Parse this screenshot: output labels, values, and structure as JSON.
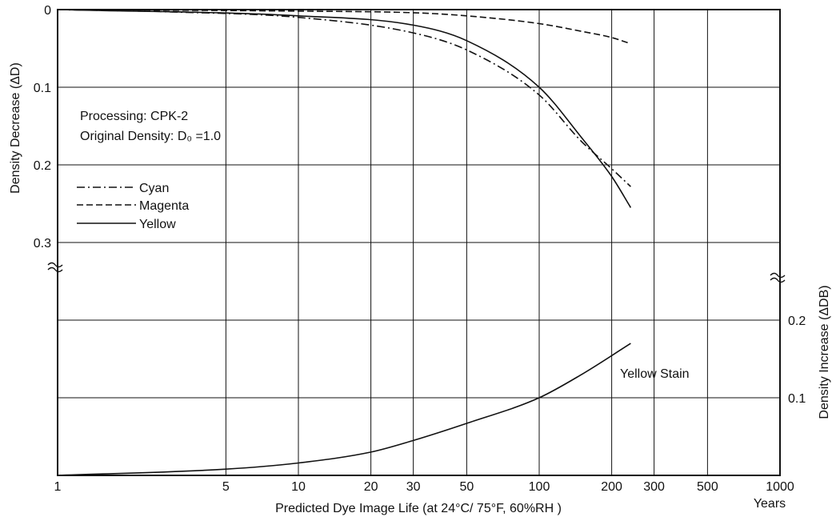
{
  "chart_data": {
    "type": "line",
    "x_scale": "log",
    "xlabel": "Predicted Dye Image Life (at 24°C/ 75°F, 60%RH )",
    "x_unit": "Years",
    "x_ticks": [
      1,
      5,
      10,
      20,
      30,
      50,
      100,
      200,
      300,
      500,
      1000
    ],
    "xlim": [
      1,
      1000
    ],
    "left_axis": {
      "label": "Density Decrease (ΔD)",
      "ticks": [
        "0",
        "0.1",
        "0.2",
        "0.3"
      ],
      "ylim": [
        0,
        0.3
      ],
      "inverted": true
    },
    "right_axis": {
      "label": "Density Increase (ΔDB)",
      "ticks": [
        "0.1",
        "0.2"
      ],
      "ylim": [
        0,
        0.2
      ]
    },
    "annotations": [
      "Processing: CPK-2",
      "Original Density: D₀ =1.0"
    ],
    "grid": true,
    "legend": {
      "placement": "upper-left",
      "entries": [
        "Cyan",
        "Magenta",
        "Yellow"
      ]
    },
    "series": [
      {
        "name": "Cyan",
        "style": "dash-dot",
        "axis": "left",
        "x": [
          1,
          3,
          10,
          30,
          50,
          100,
          150,
          200,
          240
        ],
        "y": [
          0,
          0.003,
          0.01,
          0.03,
          0.052,
          0.11,
          0.17,
          0.205,
          0.228
        ]
      },
      {
        "name": "Magenta",
        "style": "dashed",
        "axis": "left",
        "x": [
          1,
          10,
          30,
          50,
          100,
          150,
          200,
          240
        ],
        "y": [
          0,
          0.002,
          0.004,
          0.008,
          0.018,
          0.028,
          0.036,
          0.044
        ]
      },
      {
        "name": "Yellow",
        "style": "solid",
        "axis": "left",
        "x": [
          1,
          10,
          30,
          50,
          100,
          150,
          200,
          240
        ],
        "y": [
          0,
          0.008,
          0.02,
          0.04,
          0.1,
          0.165,
          0.215,
          0.255
        ]
      },
      {
        "name": "Yellow Stain",
        "style": "solid",
        "axis": "right",
        "x": [
          1,
          5,
          10,
          20,
          30,
          50,
          100,
          150,
          240
        ],
        "y": [
          0,
          0.008,
          0.016,
          0.03,
          0.045,
          0.067,
          0.1,
          0.13,
          0.17
        ]
      }
    ]
  }
}
